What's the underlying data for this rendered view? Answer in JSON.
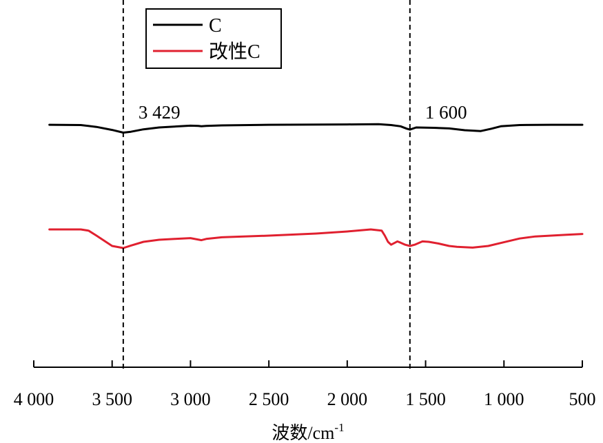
{
  "chart_data": {
    "type": "line",
    "title": "",
    "xlabel": "波数/cm",
    "xlabel_superscript": "-1",
    "ylabel": "",
    "xlim": [
      4000,
      500
    ],
    "x_reversed": true,
    "y_axis_shown": false,
    "grid": false,
    "legend_position": "top-left",
    "x_ticks": [
      4000,
      3500,
      3000,
      2500,
      2000,
      1500,
      1000,
      500
    ],
    "x_tick_labels": [
      "4 000",
      "3 500",
      "3 000",
      "2 500",
      "2 000",
      "1 500",
      "1 000",
      "500"
    ],
    "annotations": [
      {
        "x": 3429,
        "label": "3 429",
        "style": "dashed-vertical-line"
      },
      {
        "x": 1600,
        "label": "1 600",
        "style": "dashed-vertical-line"
      }
    ],
    "series": [
      {
        "name": "C",
        "color": "#000000",
        "points": [
          [
            3900,
            0.93
          ],
          [
            3700,
            0.92
          ],
          [
            3600,
            0.86
          ],
          [
            3500,
            0.76
          ],
          [
            3429,
            0.67
          ],
          [
            3380,
            0.7
          ],
          [
            3300,
            0.78
          ],
          [
            3200,
            0.84
          ],
          [
            3000,
            0.9
          ],
          [
            2950,
            0.89
          ],
          [
            2930,
            0.88
          ],
          [
            2900,
            0.89
          ],
          [
            2800,
            0.91
          ],
          [
            2500,
            0.93
          ],
          [
            2000,
            0.94
          ],
          [
            1800,
            0.95
          ],
          [
            1720,
            0.92
          ],
          [
            1660,
            0.88
          ],
          [
            1620,
            0.8
          ],
          [
            1600,
            0.77
          ],
          [
            1560,
            0.84
          ],
          [
            1450,
            0.83
          ],
          [
            1350,
            0.81
          ],
          [
            1250,
            0.75
          ],
          [
            1150,
            0.72
          ],
          [
            1080,
            0.8
          ],
          [
            1020,
            0.88
          ],
          [
            900,
            0.92
          ],
          [
            700,
            0.93
          ],
          [
            500,
            0.93
          ]
        ]
      },
      {
        "name": "改性C",
        "color": "#e0202f",
        "points": [
          [
            3900,
            0.95
          ],
          [
            3700,
            0.95
          ],
          [
            3650,
            0.92
          ],
          [
            3600,
            0.8
          ],
          [
            3500,
            0.55
          ],
          [
            3429,
            0.5
          ],
          [
            3380,
            0.56
          ],
          [
            3300,
            0.65
          ],
          [
            3200,
            0.7
          ],
          [
            3100,
            0.72
          ],
          [
            3000,
            0.74
          ],
          [
            2930,
            0.69
          ],
          [
            2900,
            0.72
          ],
          [
            2800,
            0.76
          ],
          [
            2500,
            0.8
          ],
          [
            2200,
            0.85
          ],
          [
            2000,
            0.9
          ],
          [
            1850,
            0.95
          ],
          [
            1780,
            0.92
          ],
          [
            1760,
            0.8
          ],
          [
            1740,
            0.65
          ],
          [
            1720,
            0.58
          ],
          [
            1700,
            0.62
          ],
          [
            1680,
            0.66
          ],
          [
            1660,
            0.63
          ],
          [
            1630,
            0.58
          ],
          [
            1600,
            0.55
          ],
          [
            1570,
            0.58
          ],
          [
            1520,
            0.66
          ],
          [
            1480,
            0.65
          ],
          [
            1420,
            0.61
          ],
          [
            1350,
            0.55
          ],
          [
            1300,
            0.53
          ],
          [
            1200,
            0.51
          ],
          [
            1100,
            0.55
          ],
          [
            1000,
            0.64
          ],
          [
            900,
            0.73
          ],
          [
            800,
            0.78
          ],
          [
            700,
            0.8
          ],
          [
            600,
            0.82
          ],
          [
            500,
            0.84
          ]
        ]
      }
    ],
    "plot_style": {
      "line_width": 3,
      "annotation_line_color": "#000000",
      "legend_border_color": "#000000"
    }
  }
}
